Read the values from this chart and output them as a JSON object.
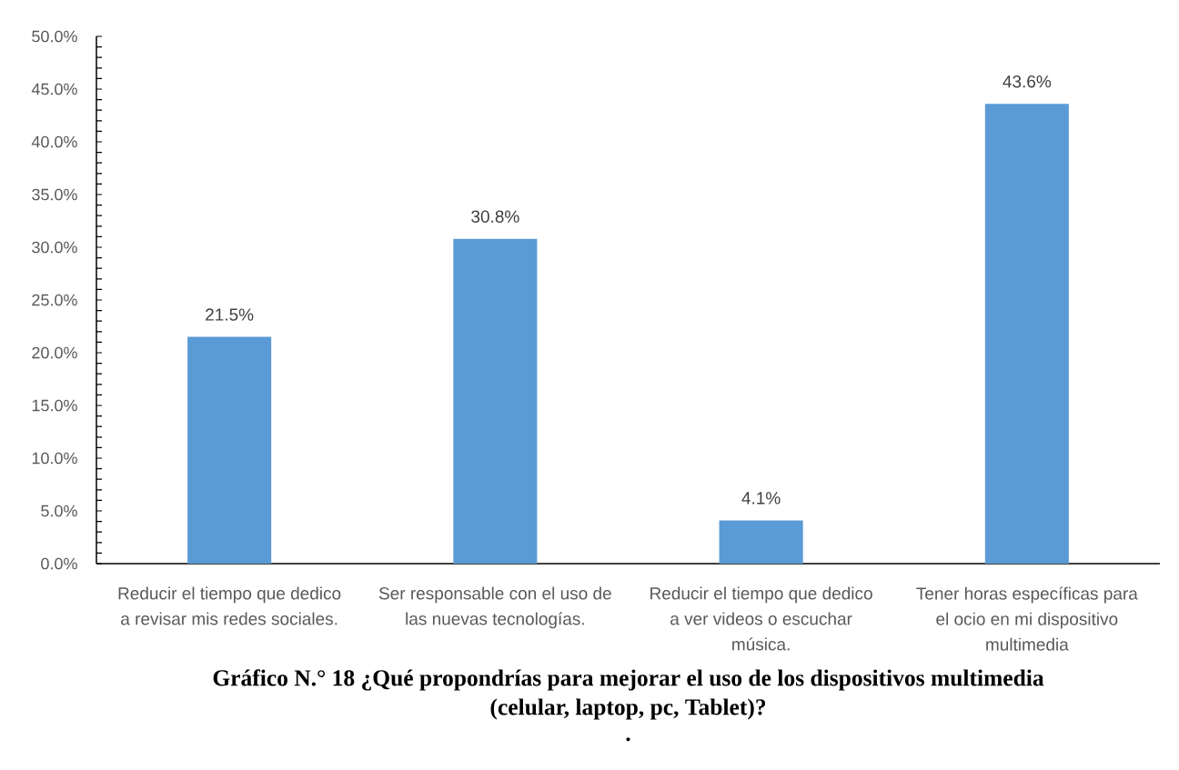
{
  "chart_data": {
    "type": "bar",
    "title": "Gráfico N.° 18 ¿Qué propondrías para mejorar el uso de los dispositivos multimedia (celular, laptop, pc, Tablet)?",
    "annotations": [
      "."
    ],
    "categories": [
      "Reducir el tiempo que dedico a revisar mis redes sociales.",
      "Ser responsable con el uso de las nuevas tecnologías.",
      "Reducir el tiempo que dedico a ver videos o escuchar música.",
      "Tener horas específicas para el ocio en mi dispositivo multimedia"
    ],
    "values": [
      21.5,
      30.8,
      4.1,
      43.6
    ],
    "value_labels": [
      "21.5%",
      "30.8%",
      "4.1%",
      "43.6%"
    ],
    "color": "#5b9bd5",
    "ylim": [
      0,
      50
    ],
    "yticks": [
      {
        "value": 0,
        "label": "0.0%"
      },
      {
        "value": 5,
        "label": "5.0%"
      },
      {
        "value": 10,
        "label": "10.0%"
      },
      {
        "value": 15,
        "label": "15.0%"
      },
      {
        "value": 20,
        "label": "20.0%"
      },
      {
        "value": 25,
        "label": "25.0%"
      },
      {
        "value": 30,
        "label": "30.0%"
      },
      {
        "value": 35,
        "label": "35.0%"
      },
      {
        "value": 40,
        "label": "40.0%"
      },
      {
        "value": 45,
        "label": "45.0%"
      },
      {
        "value": 50,
        "label": "50.0%"
      }
    ]
  }
}
